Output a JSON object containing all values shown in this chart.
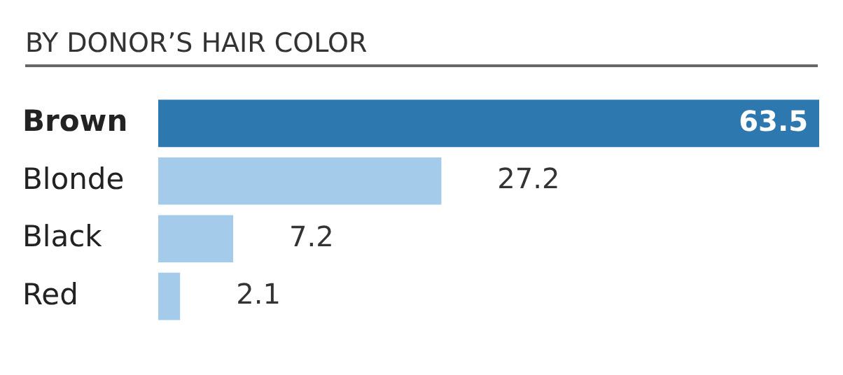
{
  "chart_data": {
    "type": "bar",
    "orientation": "horizontal",
    "title": "BY DONOR’S HAIR COLOR",
    "categories": [
      "Brown",
      "Blonde",
      "Black",
      "Red"
    ],
    "values": [
      63.5,
      27.2,
      7.2,
      2.1
    ],
    "colors": [
      "#2e78b0",
      "#a5cbea",
      "#a5cbea",
      "#a5cbea"
    ],
    "data_labels": true,
    "grid": false,
    "legend": false
  }
}
